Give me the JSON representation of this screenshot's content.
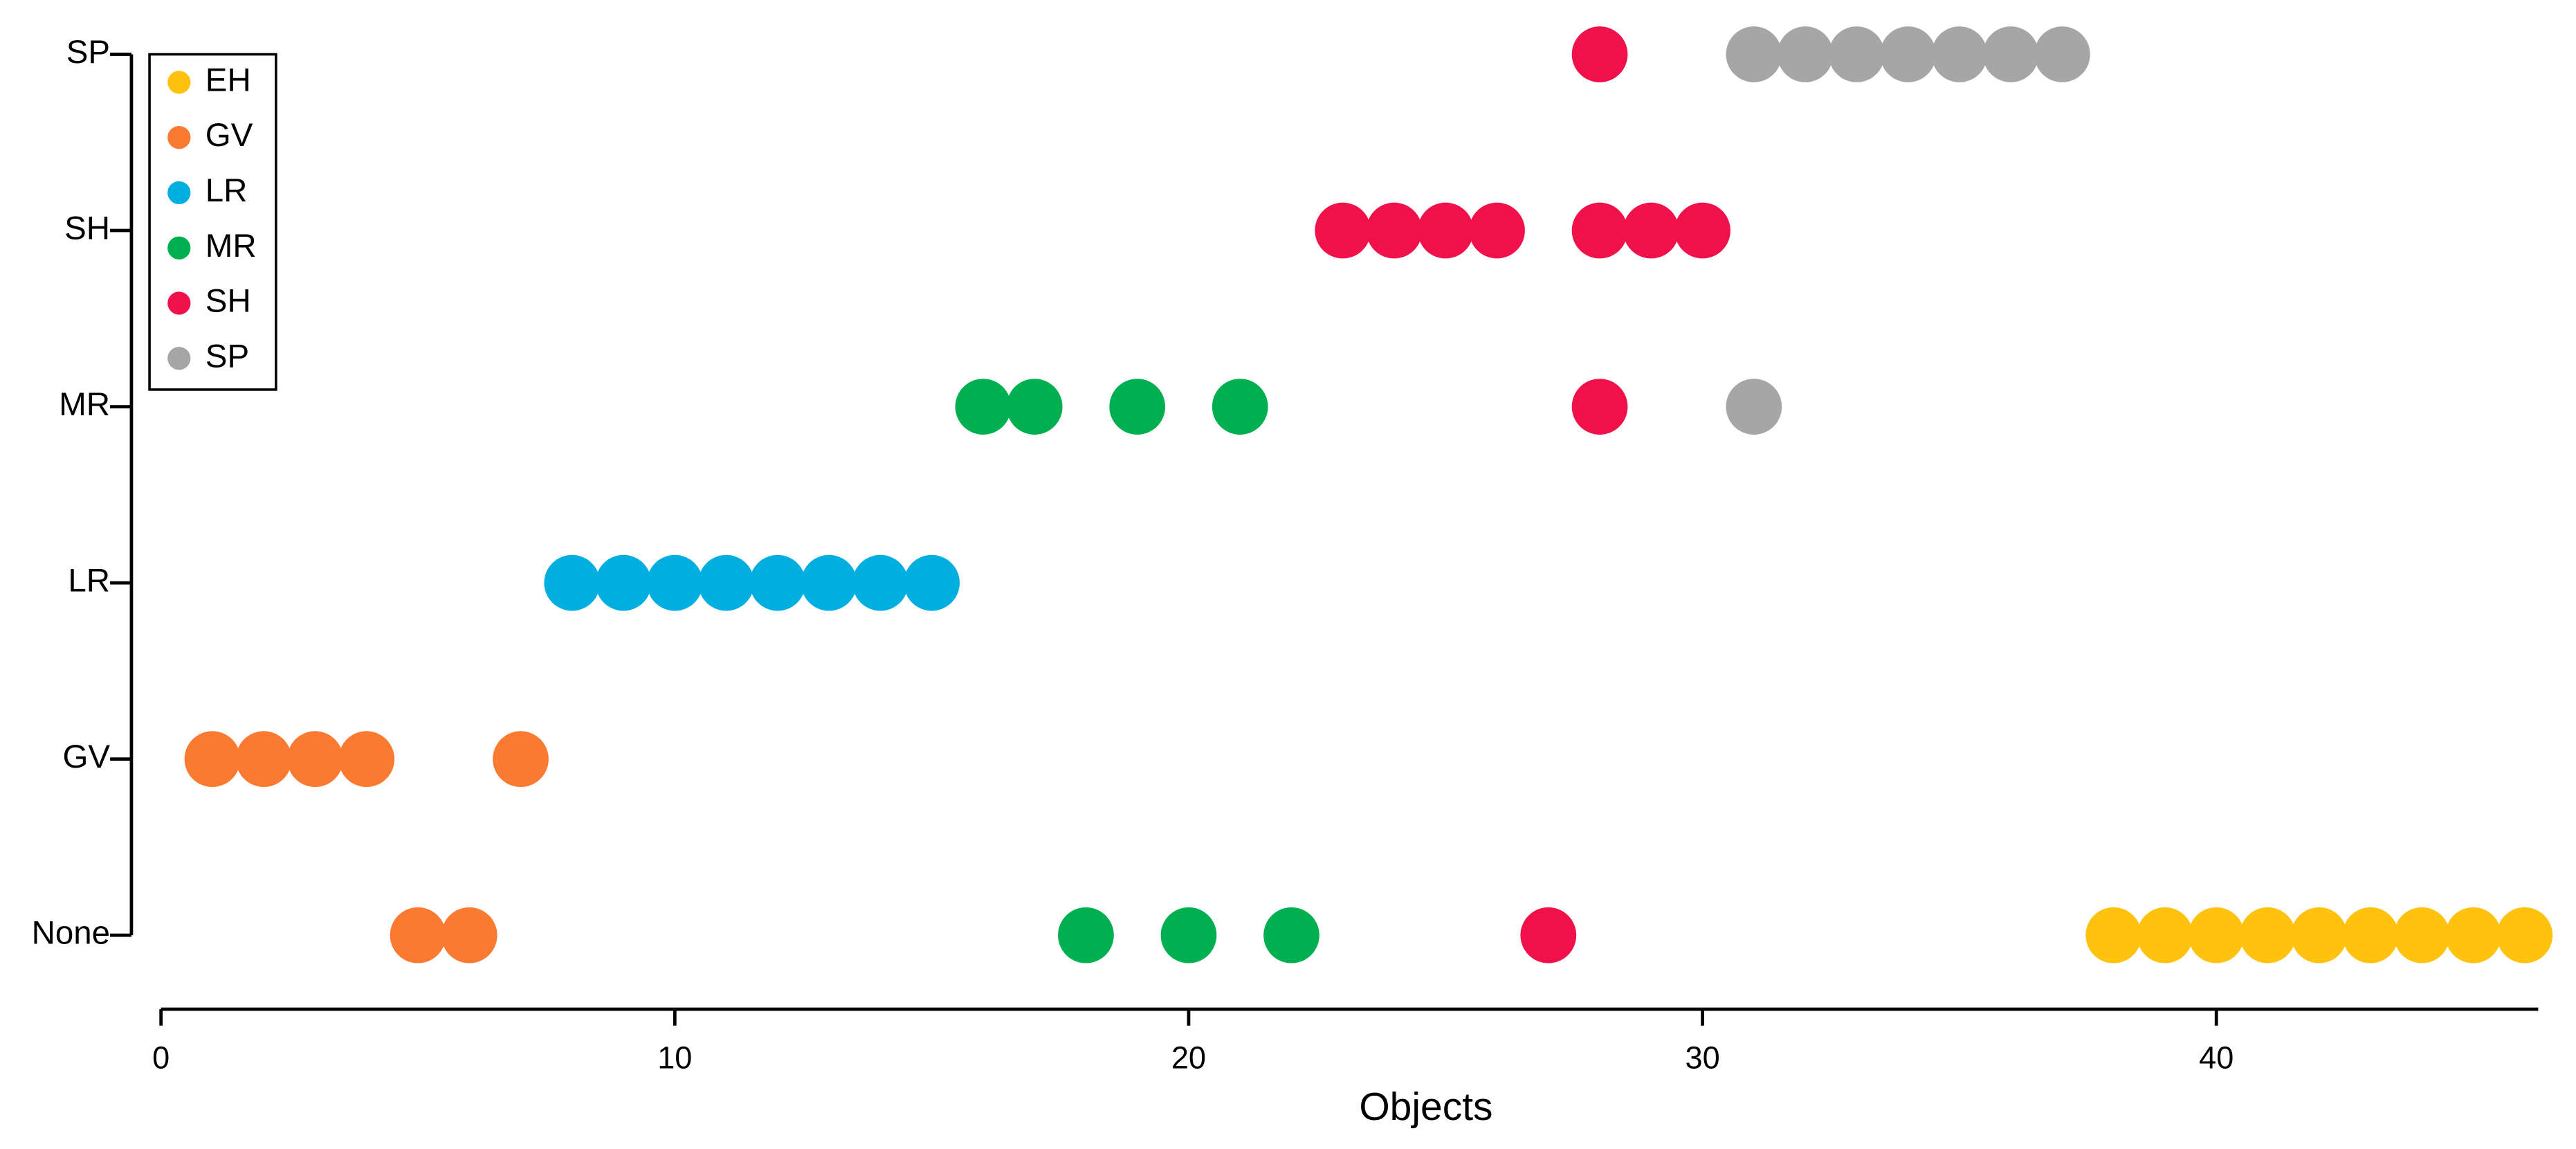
{
  "chart_data": {
    "type": "scatter",
    "x_label": "Objects",
    "xlim": [
      0,
      46.2
    ],
    "xticks": [
      0,
      10,
      20,
      30,
      40
    ],
    "y_categories": [
      "None",
      "GV",
      "LR",
      "MR",
      "SH",
      "SP"
    ],
    "legend": "top-left",
    "series": [
      {
        "name": "EH",
        "color": "#ffc20e",
        "x": [
          38,
          39,
          40,
          41,
          42,
          43,
          44,
          45,
          46
        ],
        "y": [
          "None",
          "None",
          "None",
          "None",
          "None",
          "None",
          "None",
          "None",
          "None"
        ]
      },
      {
        "name": "GV",
        "color": "#f97a30",
        "x": [
          1,
          2,
          3,
          4,
          7,
          5,
          6
        ],
        "y": [
          "GV",
          "GV",
          "GV",
          "GV",
          "GV",
          "None",
          "None"
        ]
      },
      {
        "name": "LR",
        "color": "#00aee0",
        "x": [
          8,
          9,
          10,
          11,
          12,
          13,
          14,
          15
        ],
        "y": [
          "LR",
          "LR",
          "LR",
          "LR",
          "LR",
          "LR",
          "LR",
          "LR"
        ]
      },
      {
        "name": "MR",
        "color": "#00b050",
        "x": [
          16,
          17,
          19,
          21,
          18,
          20,
          22
        ],
        "y": [
          "MR",
          "MR",
          "MR",
          "MR",
          "None",
          "None",
          "None"
        ]
      },
      {
        "name": "SH",
        "color": "#f0104a",
        "x": [
          23,
          24,
          25,
          26,
          28,
          29,
          30,
          28,
          28,
          27
        ],
        "y": [
          "SH",
          "SH",
          "SH",
          "SH",
          "SH",
          "SH",
          "SH",
          "MR",
          "SP",
          "None"
        ]
      },
      {
        "name": "SP",
        "color": "#a6a6a6",
        "x": [
          31,
          32,
          33,
          34,
          35,
          36,
          37,
          31
        ],
        "y": [
          "SP",
          "SP",
          "SP",
          "SP",
          "SP",
          "SP",
          "SP",
          "MR"
        ]
      }
    ]
  }
}
